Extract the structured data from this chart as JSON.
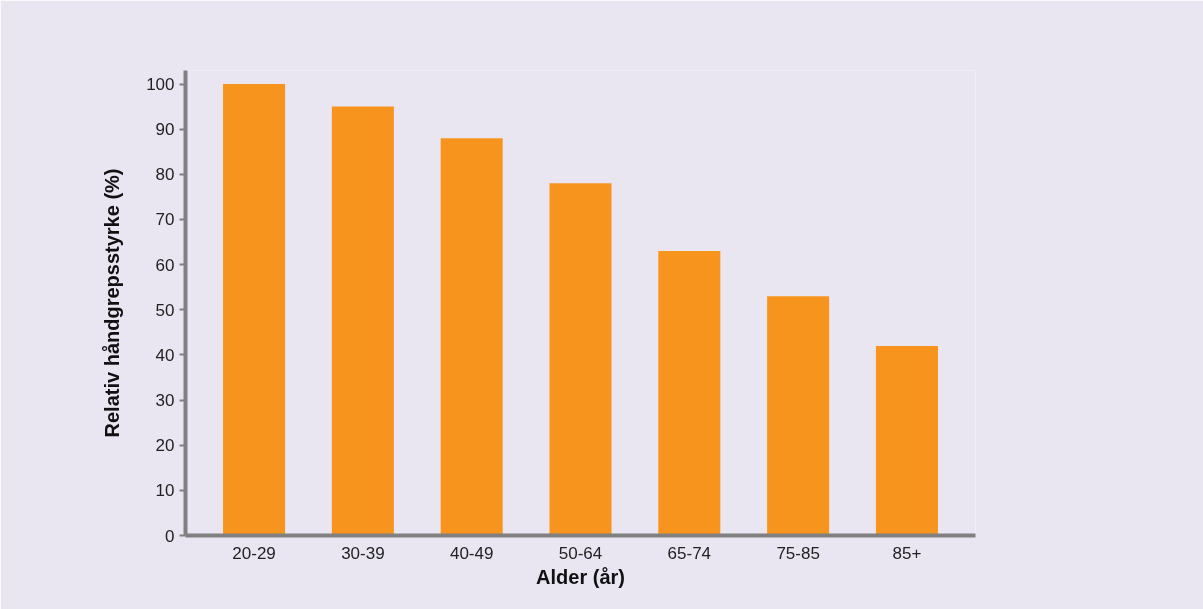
{
  "chart_data": {
    "type": "bar",
    "xlabel": "Alder (år)",
    "ylabel": "Relativ håndgrepsstyrke (%)",
    "categories": [
      "20-29",
      "30-39",
      "40-49",
      "50-64",
      "65-74",
      "75-85",
      "85+"
    ],
    "values": [
      100,
      95,
      88,
      78,
      63,
      53,
      42
    ],
    "color": "#f7941d",
    "ylim": [
      0,
      103
    ],
    "yticks": [
      0,
      10,
      20,
      30,
      40,
      50,
      60,
      70,
      80,
      90,
      100
    ],
    "grid": false
  }
}
